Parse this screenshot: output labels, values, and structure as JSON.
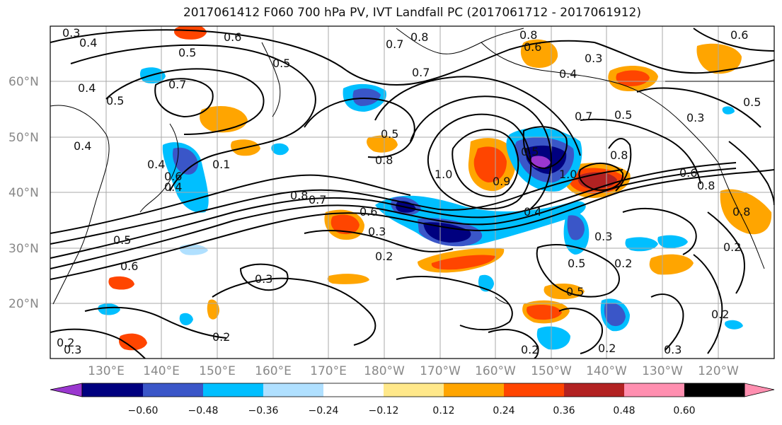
{
  "title": "2017061412 F060 700 hPa PV, IVT Landfall PC (2017061712 - 2017061912)",
  "lat_labels": [
    "60°N",
    "50°N",
    "40°N",
    "30°N",
    "20°N"
  ],
  "lon_labels": [
    "130°E",
    "140°E",
    "150°E",
    "160°E",
    "170°E",
    "180°W",
    "170°W",
    "160°W",
    "150°W",
    "140°W",
    "130°W",
    "120°W"
  ],
  "colorbar": {
    "ticks": [
      "−0.60",
      "−0.48",
      "−0.36",
      "−0.24",
      "−0.12",
      "0.12",
      "0.24",
      "0.36",
      "0.48",
      "0.60"
    ],
    "colors": [
      "#9a37cf",
      "#00007f",
      "#3a56c8",
      "#00bfff",
      "#b0e0ff",
      "#ffffff",
      "#ffe88a",
      "#ffa500",
      "#ff4500",
      "#b22222",
      "#ff8fb0"
    ]
  },
  "contour_labels": [
    "0.3",
    "0.4",
    "0.6",
    "0.8",
    "0.5",
    "0.7",
    "0.8",
    "0.5",
    "0.7",
    "0.6",
    "0.3",
    "0.4",
    "0.6",
    "0.4",
    "0.5",
    "0.5",
    "0.5",
    "0.3",
    "0.7",
    "0.4",
    "0.4",
    "0.5",
    "0.1",
    "0.4",
    "0.6",
    "0.8",
    "1.0",
    "0.7",
    "1.0",
    "0.5",
    "0.9",
    "0.8",
    "0.6",
    "0.7",
    "0.8",
    "0.3",
    "0.5",
    "0.4",
    "0.3",
    "0.6",
    "0.2",
    "0.5",
    "0.3",
    "0.2",
    "0.2",
    "0.2",
    "0.2",
    "0.8",
    "0.2",
    "0.3",
    "0.2",
    "0.2",
    "0.8",
    "0.3",
    "0.6",
    "0.5"
  ]
}
